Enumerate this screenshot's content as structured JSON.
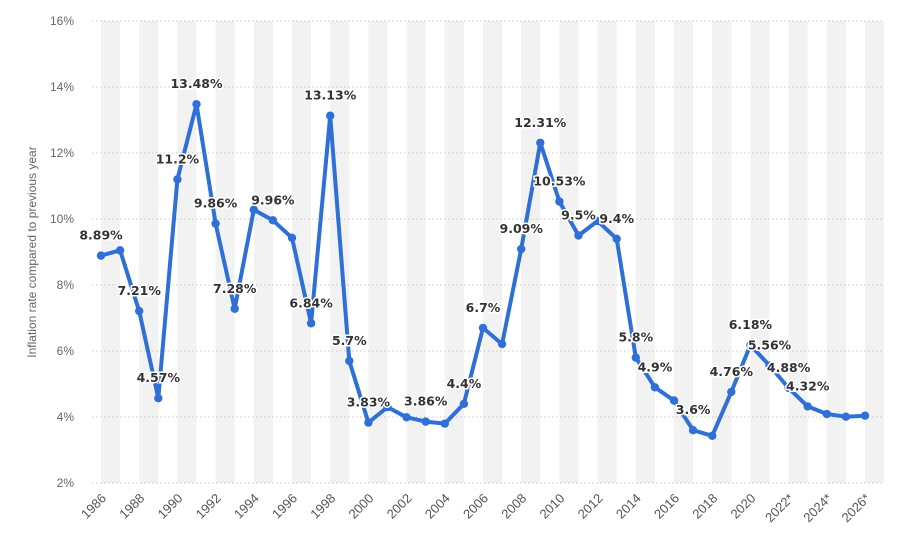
{
  "chart_data": {
    "type": "line",
    "title": "",
    "xlabel": "",
    "ylabel": "Inflation rate compared to previous year",
    "ylim": [
      2,
      16
    ],
    "yticks": [
      2,
      4,
      6,
      8,
      10,
      12,
      14,
      16
    ],
    "ytick_labels": [
      "2%",
      "4%",
      "6%",
      "8%",
      "10%",
      "12%",
      "14%",
      "16%"
    ],
    "x_tick_labels": [
      "1986",
      "1988",
      "1990",
      "1992",
      "1994",
      "1996",
      "1998",
      "2000",
      "2002",
      "2004",
      "2006",
      "2008",
      "2010",
      "2012",
      "2014",
      "2016",
      "2018",
      "2020",
      "2022*",
      "2024*",
      "2026*"
    ],
    "grid": true,
    "legend": "none",
    "color": "#2f6fd8",
    "band_color": "#f2f2f2",
    "x": [
      1986,
      1987,
      1988,
      1989,
      1990,
      1991,
      1992,
      1993,
      1994,
      1995,
      1996,
      1997,
      1998,
      1999,
      2000,
      2001,
      2002,
      2003,
      2004,
      2005,
      2006,
      2007,
      2008,
      2009,
      2010,
      2011,
      2012,
      2013,
      2014,
      2015,
      2016,
      2017,
      2018,
      2019,
      2020,
      2021,
      2022,
      2023,
      2024,
      2025,
      2026
    ],
    "values": [
      8.89,
      9.05,
      7.21,
      4.57,
      11.2,
      13.48,
      9.86,
      7.28,
      10.28,
      9.96,
      9.43,
      6.84,
      13.13,
      5.7,
      3.83,
      4.3,
      3.99,
      3.86,
      3.8,
      4.4,
      6.7,
      6.21,
      9.09,
      12.31,
      10.53,
      9.5,
      9.94,
      9.4,
      5.8,
      4.9,
      4.5,
      3.6,
      3.43,
      4.76,
      6.18,
      5.56,
      4.88,
      4.32,
      4.09,
      4.01,
      4.04
    ],
    "data_labels": [
      {
        "x": 1986,
        "text": "8.89%"
      },
      {
        "x": 1988,
        "text": "7.21%"
      },
      {
        "x": 1989,
        "text": "4.57%"
      },
      {
        "x": 1990,
        "text": "11.2%"
      },
      {
        "x": 1991,
        "text": "13.48%"
      },
      {
        "x": 1992,
        "text": "9.86%"
      },
      {
        "x": 1993,
        "text": "7.28%"
      },
      {
        "x": 1995,
        "text": "9.96%"
      },
      {
        "x": 1997,
        "text": "6.84%"
      },
      {
        "x": 1998,
        "text": "13.13%"
      },
      {
        "x": 1999,
        "text": "5.7%"
      },
      {
        "x": 2000,
        "text": "3.83%"
      },
      {
        "x": 2003,
        "text": "3.86%"
      },
      {
        "x": 2005,
        "text": "4.4%"
      },
      {
        "x": 2006,
        "text": "6.7%"
      },
      {
        "x": 2008,
        "text": "9.09%"
      },
      {
        "x": 2009,
        "text": "12.31%"
      },
      {
        "x": 2010,
        "text": "10.53%"
      },
      {
        "x": 2011,
        "text": "9.5%"
      },
      {
        "x": 2013,
        "text": "9.4%"
      },
      {
        "x": 2014,
        "text": "5.8%"
      },
      {
        "x": 2015,
        "text": "4.9%"
      },
      {
        "x": 2017,
        "text": "3.6%"
      },
      {
        "x": 2019,
        "text": "4.76%"
      },
      {
        "x": 2020,
        "text": "6.18%"
      },
      {
        "x": 2021,
        "text": "5.56%"
      },
      {
        "x": 2022,
        "text": "4.88%"
      },
      {
        "x": 2023,
        "text": "4.32%"
      }
    ]
  }
}
